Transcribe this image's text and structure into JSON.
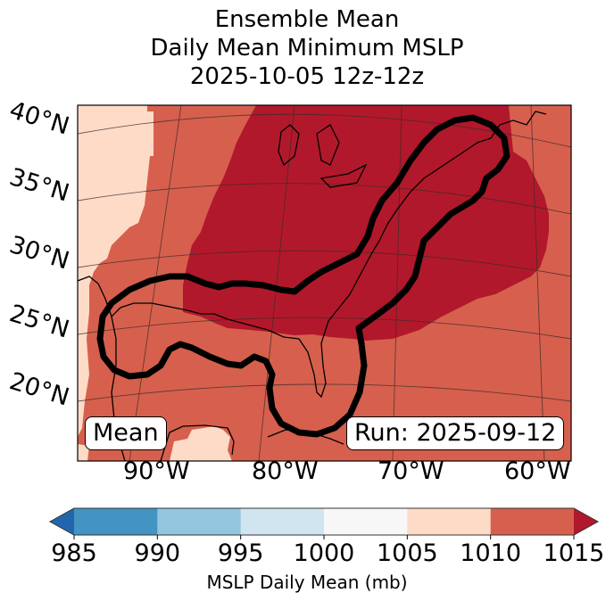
{
  "title": {
    "line1": "Ensemble Mean",
    "line2": "Daily Mean Minimum MSLP",
    "line3": "2025-10-05 12z-12z"
  },
  "map": {
    "lat_labels": [
      "40°N",
      "35°N",
      "30°N",
      "25°N",
      "20°N"
    ],
    "lon_labels": [
      "90°W",
      "80°W",
      "70°W",
      "60°W"
    ],
    "left_badge": "Mean",
    "right_badge": "Run: 2025-09-12",
    "fill_colors": {
      "1005-1010": "#fddbc7",
      "1010-1015": "#d6604d",
      ">1015": "#b2182b"
    },
    "contour_color": "#000000"
  },
  "colorbar": {
    "label": "MSLP Daily Mean (mb)",
    "ticks": [
      "985",
      "990",
      "995",
      "1000",
      "1005",
      "1010",
      "1015"
    ],
    "segments": [
      {
        "range": "<985",
        "color": "#2166ac"
      },
      {
        "range": "985-990",
        "color": "#4393c3"
      },
      {
        "range": "990-995",
        "color": "#92c5de"
      },
      {
        "range": "995-1000",
        "color": "#d1e5f0"
      },
      {
        "range": "1000-1005",
        "color": "#f7f7f7"
      },
      {
        "range": "1005-1010",
        "color": "#fddbc7"
      },
      {
        "range": "1010-1015",
        "color": "#d6604d"
      },
      {
        "range": ">1015",
        "color": "#b2182b"
      }
    ]
  }
}
